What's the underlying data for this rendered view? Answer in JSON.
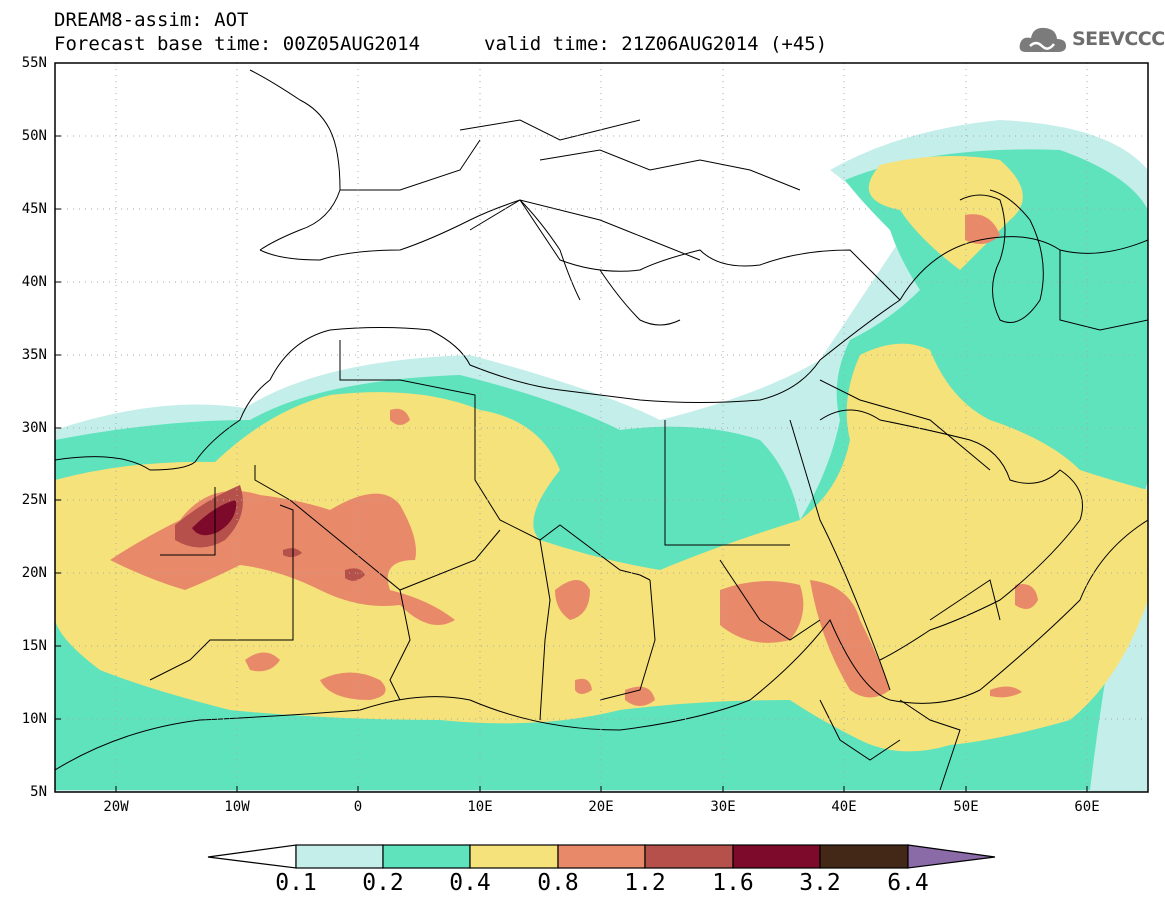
{
  "header": {
    "line1": "DREAM8-assim: AOT",
    "base_time": "Forecast base time: 00Z05AUG2014",
    "valid_time": "valid time: 21Z06AUG2014 (+45)"
  },
  "logo": {
    "text": "SEEVCCC",
    "icon": "cloud-icon"
  },
  "map": {
    "lon_range": [
      -25,
      65
    ],
    "lat_range": [
      5,
      55
    ],
    "lat_labels": [
      "5N",
      "10N",
      "15N",
      "20N",
      "25N",
      "30N",
      "35N",
      "40N",
      "45N",
      "50N",
      "55N"
    ],
    "lon_labels": [
      "20W",
      "10W",
      "0",
      "10E",
      "20E",
      "30E",
      "40E",
      "50E",
      "60E"
    ]
  },
  "colorbar": {
    "labels": [
      "0.1",
      "0.2",
      "0.4",
      "0.8",
      "1.2",
      "1.6",
      "3.2",
      "6.4"
    ],
    "colors": [
      "#ffffff",
      "#c4eee9",
      "#5fe3bd",
      "#f6e27a",
      "#e88a6a",
      "#b5504a",
      "#7d0a2a",
      "#432818",
      "#8b6aa8"
    ]
  }
}
